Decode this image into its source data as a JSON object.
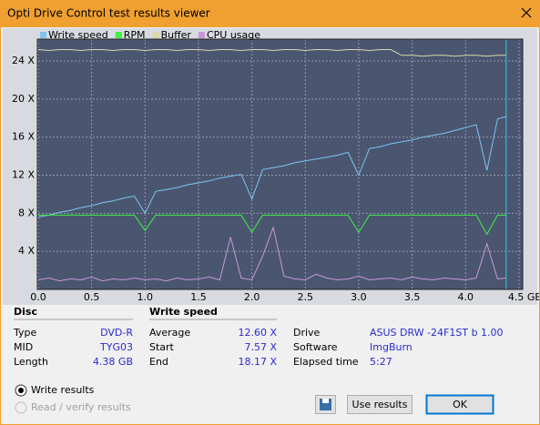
{
  "window": {
    "title": "Opti Drive Control test results viewer"
  },
  "chart_data": {
    "type": "line",
    "x": [
      0,
      0.1,
      0.2,
      0.3,
      0.4,
      0.5,
      0.6,
      0.7,
      0.8,
      0.9,
      1.0,
      1.1,
      1.2,
      1.3,
      1.4,
      1.5,
      1.6,
      1.7,
      1.8,
      1.9,
      2.0,
      2.1,
      2.2,
      2.3,
      2.4,
      2.5,
      2.6,
      2.7,
      2.8,
      2.9,
      3.0,
      3.1,
      3.2,
      3.3,
      3.4,
      3.5,
      3.6,
      3.7,
      3.8,
      3.9,
      4.0,
      4.1,
      4.2,
      4.3,
      4.38
    ],
    "series": [
      {
        "name": "Write speed",
        "color": "#7cc4f0",
        "values": [
          7.6,
          7.8,
          8.1,
          8.3,
          8.6,
          8.8,
          9.1,
          9.3,
          9.6,
          9.8,
          8.0,
          10.3,
          10.5,
          10.7,
          11.0,
          11.2,
          11.4,
          11.7,
          11.9,
          12.1,
          9.5,
          12.6,
          12.8,
          13.0,
          13.3,
          13.5,
          13.7,
          13.9,
          14.1,
          14.4,
          12.0,
          14.8,
          15.0,
          15.3,
          15.5,
          15.7,
          16.0,
          16.2,
          16.4,
          16.7,
          17.0,
          17.3,
          12.5,
          17.9,
          18.17
        ]
      },
      {
        "name": "RPM",
        "color": "#40f040",
        "values": [
          7.8,
          7.8,
          7.8,
          7.8,
          7.8,
          7.8,
          7.8,
          7.8,
          7.8,
          7.8,
          6.2,
          7.8,
          7.8,
          7.8,
          7.8,
          7.8,
          7.8,
          7.8,
          7.8,
          7.8,
          6.0,
          7.8,
          7.8,
          7.8,
          7.8,
          7.8,
          7.8,
          7.8,
          7.8,
          7.8,
          6.0,
          7.8,
          7.8,
          7.8,
          7.8,
          7.8,
          7.8,
          7.8,
          7.8,
          7.8,
          7.8,
          7.8,
          5.8,
          7.8,
          7.8
        ]
      },
      {
        "name": "Buffer",
        "color": "#d8d8a8",
        "values": [
          25.2,
          25.1,
          25.2,
          25.2,
          25.1,
          25.2,
          25.2,
          25.1,
          25.2,
          25.2,
          25.1,
          25.2,
          25.2,
          25.1,
          25.2,
          25.2,
          25.1,
          25.2,
          25.2,
          25.1,
          25.2,
          25.2,
          25.1,
          25.2,
          25.2,
          25.1,
          25.2,
          25.2,
          25.1,
          25.2,
          25.2,
          25.1,
          25.2,
          25.2,
          24.6,
          24.6,
          24.5,
          24.6,
          24.6,
          24.5,
          24.6,
          24.6,
          24.5,
          24.6,
          24.6
        ]
      },
      {
        "name": "CPU usage",
        "color": "#c898d8",
        "values": [
          1.0,
          1.2,
          0.9,
          1.1,
          1.0,
          1.3,
          0.9,
          1.1,
          1.0,
          1.2,
          1.0,
          1.1,
          0.9,
          1.2,
          1.0,
          1.1,
          1.3,
          1.0,
          5.5,
          1.2,
          1.0,
          3.5,
          6.5,
          1.4,
          1.1,
          1.0,
          1.6,
          1.2,
          1.0,
          1.1,
          1.4,
          1.0,
          1.1,
          1.2,
          1.0,
          1.3,
          1.1,
          1.0,
          1.2,
          1.1,
          1.0,
          1.2,
          4.8,
          1.1,
          1.2
        ]
      }
    ],
    "xlim": [
      0,
      4.535
    ],
    "xticks": [
      {
        "value": 0,
        "label": "0.0"
      },
      0.5,
      {
        "value": 1,
        "label": "1.0"
      },
      1.5,
      {
        "value": 2,
        "label": "2.0"
      },
      2.5,
      {
        "value": 3,
        "label": "3.0"
      },
      3.5,
      {
        "value": 4,
        "label": "4.0"
      },
      {
        "value": 4.5,
        "label": "4.5 GB"
      }
    ],
    "ylim": [
      0,
      26.3
    ],
    "yticks": [
      {
        "value": 4,
        "label": "4 X"
      },
      {
        "value": 8,
        "label": "8 X"
      },
      {
        "value": 12,
        "label": "12 X"
      },
      {
        "value": 16,
        "label": "16 X"
      },
      {
        "value": 20,
        "label": "20 X"
      },
      {
        "value": 24,
        "label": "24 X"
      }
    ],
    "grid": true,
    "legend": "top-left"
  },
  "info": {
    "disc": {
      "heading": "Disc",
      "rows": [
        [
          "Type",
          "DVD-R"
        ],
        [
          "MID",
          "TYG03"
        ],
        [
          "Length",
          "4.38 GB"
        ]
      ]
    },
    "write_speed": {
      "heading": "Write speed",
      "rows": [
        [
          "Average",
          "12.60 X"
        ],
        [
          "Start",
          "7.57 X"
        ],
        [
          "End",
          "18.17 X"
        ]
      ]
    },
    "drive": {
      "rows": [
        [
          "Drive",
          "ASUS DRW -24F1ST   b 1.00"
        ],
        [
          "Software",
          "ImgBurn"
        ],
        [
          "Elapsed time",
          "5:27"
        ]
      ]
    }
  },
  "options": [
    "Write results",
    "Read / verify results"
  ],
  "buttons": [
    "Use results",
    "OK"
  ]
}
